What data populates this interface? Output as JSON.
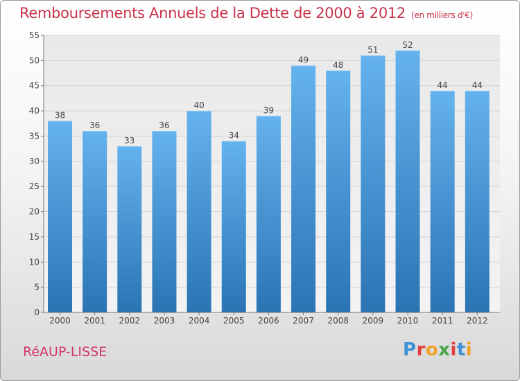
{
  "header": {
    "title": "Remboursements Annuels de la Dette de 2000 à 2012",
    "unit": "(en milliers d'€)"
  },
  "footer": {
    "commune": "RéAUP-LISSE",
    "logo_letters": [
      "P",
      "r",
      "o",
      "x",
      "i",
      "t",
      "i"
    ],
    "logo_colors": [
      "#3d8fd6",
      "#e2403a",
      "#f0a32a",
      "#4aa64a",
      "#e2403a",
      "#3d8fd6",
      "#f0a32a"
    ]
  },
  "chart_data": {
    "type": "bar",
    "title": "Remboursements Annuels de la Dette de 2000 à 2012",
    "xlabel": "",
    "ylabel": "",
    "categories": [
      "2000",
      "2001",
      "2002",
      "2003",
      "2004",
      "2005",
      "2006",
      "2007",
      "2008",
      "2009",
      "2010",
      "2011",
      "2012"
    ],
    "values": [
      38,
      36,
      33,
      36,
      40,
      34,
      39,
      49,
      48,
      51,
      52,
      44,
      44
    ],
    "ylim": [
      0,
      55
    ],
    "yticks": [
      0,
      5,
      10,
      15,
      20,
      25,
      30,
      35,
      40,
      45,
      50,
      55
    ],
    "grid": true,
    "bar_color_top": "#64b2ee",
    "bar_color_bottom": "#2a74b4"
  }
}
